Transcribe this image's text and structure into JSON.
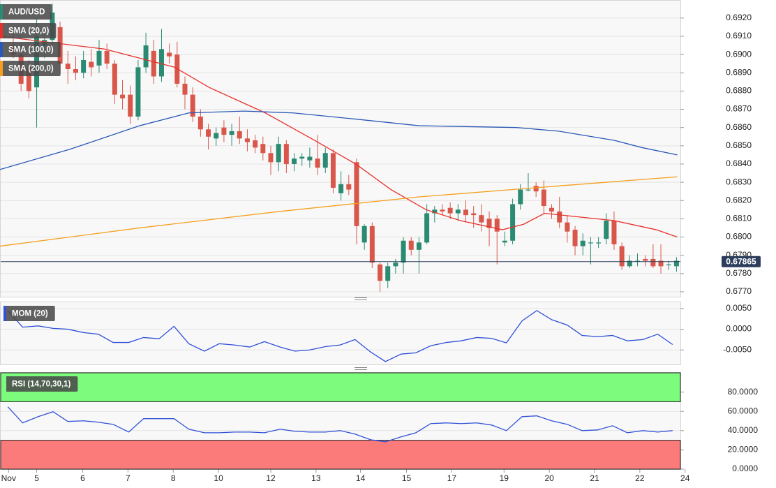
{
  "chart_data": [
    {
      "type": "candlestick",
      "title": "AUD/USD",
      "up_color": "#2b8a72",
      "down_color": "#d9564a",
      "open": [
        0.6905,
        0.69,
        0.6893,
        0.6882,
        0.6905,
        0.6908,
        0.6915,
        0.6895,
        0.6892,
        0.689,
        0.6896,
        0.6894,
        0.6902,
        0.6895,
        0.6878,
        0.6878,
        0.6866,
        0.6893,
        0.6902,
        0.6888,
        0.6901,
        0.69,
        0.6884,
        0.6878,
        0.6866,
        0.6859,
        0.6854,
        0.686,
        0.6856,
        0.6858,
        0.6854,
        0.6853,
        0.6851,
        0.6846,
        0.6841,
        0.6851,
        0.684,
        0.6843,
        0.6842,
        0.6843,
        0.6838,
        0.6846,
        0.6824,
        0.6829,
        0.6841,
        0.6797,
        0.6806,
        0.6785,
        0.6776,
        0.6784,
        0.6786,
        0.6798,
        0.6793,
        0.6797,
        0.6813,
        0.6815,
        0.6816,
        0.6813,
        0.6815,
        0.6813,
        0.6812,
        0.681,
        0.681,
        0.6797,
        0.6798,
        0.6818,
        0.6826,
        0.6828,
        0.6826,
        0.6816,
        0.6814,
        0.6808,
        0.6804,
        0.6795,
        0.6797,
        0.6797,
        0.6799,
        0.6809,
        0.6795,
        0.6784,
        0.6787,
        0.6788,
        0.6788,
        0.6787,
        0.6785,
        0.6784
      ],
      "high": [
        0.6912,
        0.6906,
        0.6897,
        0.692,
        0.6912,
        0.6928,
        0.6918,
        0.6902,
        0.6899,
        0.6902,
        0.6903,
        0.6908,
        0.6906,
        0.6897,
        0.6886,
        0.6883,
        0.6897,
        0.6912,
        0.6908,
        0.6914,
        0.6906,
        0.6907,
        0.6888,
        0.6882,
        0.687,
        0.6862,
        0.686,
        0.6864,
        0.6862,
        0.6866,
        0.6859,
        0.6856,
        0.6855,
        0.685,
        0.6855,
        0.6853,
        0.6846,
        0.6846,
        0.6849,
        0.6856,
        0.6849,
        0.6848,
        0.6836,
        0.6834,
        0.6843,
        0.6807,
        0.6808,
        0.6786,
        0.6786,
        0.6788,
        0.68,
        0.68,
        0.68,
        0.6818,
        0.6817,
        0.6818,
        0.6819,
        0.6818,
        0.682,
        0.6817,
        0.6818,
        0.6814,
        0.6812,
        0.6803,
        0.6821,
        0.6829,
        0.6835,
        0.683,
        0.6831,
        0.6818,
        0.6822,
        0.6812,
        0.6806,
        0.6802,
        0.68,
        0.68,
        0.6813,
        0.6814,
        0.6797,
        0.679,
        0.6791,
        0.679,
        0.6796,
        0.6796,
        0.6787,
        0.6789
      ],
      "low": [
        0.6898,
        0.688,
        0.6876,
        0.686,
        0.6898,
        0.6903,
        0.689,
        0.6884,
        0.6886,
        0.6887,
        0.6888,
        0.689,
        0.6892,
        0.6873,
        0.687,
        0.6862,
        0.6864,
        0.689,
        0.6884,
        0.6885,
        0.6895,
        0.6882,
        0.687,
        0.6863,
        0.6855,
        0.6848,
        0.685,
        0.6852,
        0.685,
        0.6851,
        0.6847,
        0.6846,
        0.6842,
        0.6834,
        0.6836,
        0.6835,
        0.6836,
        0.6839,
        0.6838,
        0.6834,
        0.6835,
        0.6824,
        0.682,
        0.6823,
        0.6796,
        0.6793,
        0.6783,
        0.677,
        0.6772,
        0.678,
        0.678,
        0.679,
        0.678,
        0.6796,
        0.6808,
        0.6812,
        0.681,
        0.6809,
        0.6808,
        0.6805,
        0.6803,
        0.6795,
        0.6785,
        0.6795,
        0.6796,
        0.6815,
        0.6825,
        0.6822,
        0.6813,
        0.681,
        0.6805,
        0.6797,
        0.679,
        0.679,
        0.6785,
        0.6794,
        0.6796,
        0.6793,
        0.6782,
        0.6783,
        0.6784,
        0.6784,
        0.6783,
        0.678,
        0.6782,
        0.6781
      ],
      "close": [
        0.69,
        0.6884,
        0.688,
        0.691,
        0.6908,
        0.6923,
        0.6895,
        0.6892,
        0.689,
        0.6897,
        0.6893,
        0.6902,
        0.6895,
        0.6878,
        0.6876,
        0.6866,
        0.6893,
        0.6905,
        0.6888,
        0.6903,
        0.6899,
        0.6884,
        0.6878,
        0.6866,
        0.6859,
        0.6855,
        0.6857,
        0.6856,
        0.6858,
        0.6854,
        0.6852,
        0.6849,
        0.6846,
        0.6841,
        0.6851,
        0.684,
        0.6843,
        0.6844,
        0.6844,
        0.6838,
        0.6846,
        0.6827,
        0.6829,
        0.6826,
        0.6806,
        0.6806,
        0.6786,
        0.6776,
        0.6784,
        0.6786,
        0.6798,
        0.6793,
        0.6797,
        0.6813,
        0.6815,
        0.6814,
        0.6813,
        0.6815,
        0.6812,
        0.6812,
        0.6808,
        0.6805,
        0.6803,
        0.6798,
        0.6818,
        0.6826,
        0.6826,
        0.6825,
        0.6817,
        0.6814,
        0.6808,
        0.6803,
        0.6795,
        0.6798,
        0.6797,
        0.6797,
        0.6809,
        0.6796,
        0.6784,
        0.6787,
        0.6787,
        0.6787,
        0.6784,
        0.6784,
        0.6785,
        0.6787
      ],
      "series": [
        {
          "name": "SMA (20,0)",
          "color": "#e8302a",
          "x": [
            -1.7,
            11.7,
            20.7,
            25.1,
            32.3,
            38.6,
            43.9,
            48.4,
            52.9,
            57.3,
            62.7,
            65.4,
            68.1,
            72.5,
            77.0,
            82.4,
            85.1
          ],
          "values": [
            0.691,
            0.6903,
            0.6893,
            0.6882,
            0.6868,
            0.6853,
            0.684,
            0.6826,
            0.6815,
            0.6809,
            0.6804,
            0.6807,
            0.6813,
            0.6811,
            0.6809,
            0.6804,
            0.68
          ]
        },
        {
          "name": "SMA (100,0)",
          "color": "#2a58b6",
          "x": [
            -1.7,
            7.2,
            16.2,
            22.5,
            29.6,
            35.9,
            43.0,
            52.0,
            64.5,
            69.9,
            77.0,
            80.6,
            85.1
          ],
          "values": [
            0.6837,
            0.6848,
            0.6861,
            0.6868,
            0.6869,
            0.6868,
            0.6865,
            0.6861,
            0.686,
            0.6858,
            0.6853,
            0.6849,
            0.6845
          ]
        },
        {
          "name": "SMA (200,0)",
          "color": "#f59f1c",
          "x": [
            -1.7,
            16.2,
            34.1,
            52.0,
            69.9,
            85.1
          ],
          "values": [
            0.6795,
            0.6805,
            0.6814,
            0.6822,
            0.6828,
            0.6833
          ]
        }
      ],
      "last_price": 0.67865,
      "last_price_color": "#2c3d5b",
      "xlim": [
        -1.7,
        85.5
      ],
      "ylim": [
        0.67673,
        0.69295
      ],
      "yticks": [
        {
          "value": 0.677,
          "label": "0.6770"
        },
        {
          "value": 0.678,
          "label": "0.6780"
        },
        {
          "value": 0.679,
          "label": "0.6790"
        },
        {
          "value": 0.68,
          "label": "0.6800"
        },
        {
          "value": 0.681,
          "label": "0.6810"
        },
        {
          "value": 0.682,
          "label": "0.6820"
        },
        {
          "value": 0.683,
          "label": "0.6830"
        },
        {
          "value": 0.684,
          "label": "0.6840"
        },
        {
          "value": 0.685,
          "label": "0.6850"
        },
        {
          "value": 0.686,
          "label": "0.6860"
        },
        {
          "value": 0.687,
          "label": "0.6870"
        },
        {
          "value": 0.688,
          "label": "0.6880"
        },
        {
          "value": 0.689,
          "label": "0.6890"
        },
        {
          "value": 0.69,
          "label": "0.6900"
        },
        {
          "value": 0.691,
          "label": "0.6910"
        },
        {
          "value": 0.692,
          "label": "0.6920"
        }
      ],
      "grid": true
    },
    {
      "type": "line",
      "series": [
        {
          "name": "MOM (20)",
          "color": "#3050d8",
          "x": [
            -0.7,
            1.2,
            3.2,
            5.1,
            7.0,
            9.0,
            10.9,
            12.8,
            14.8,
            16.7,
            18.7,
            20.6,
            22.5,
            24.5,
            26.4,
            28.3,
            30.3,
            32.2,
            34.2,
            36.1,
            38.0,
            40.0,
            41.9,
            43.8,
            45.8,
            47.7,
            49.7,
            51.6,
            53.5,
            55.5,
            57.4,
            59.4,
            61.3,
            63.2,
            65.2,
            67.1,
            69.0,
            71.0,
            72.9,
            74.9,
            76.8,
            78.7,
            80.7,
            82.6,
            84.5
          ],
          "values": [
            0.0045,
            0.0005,
            0.0008,
            0.0002,
            0.0,
            -0.0008,
            -0.0012,
            -0.0032,
            -0.0032,
            -0.002,
            -0.0023,
            0.0007,
            -0.0035,
            -0.0053,
            -0.0035,
            -0.0038,
            -0.0043,
            -0.003,
            -0.0043,
            -0.0053,
            -0.005,
            -0.0042,
            -0.0038,
            -0.0025,
            -0.0055,
            -0.0078,
            -0.006,
            -0.0057,
            -0.004,
            -0.0032,
            -0.0028,
            -0.002,
            -0.0022,
            -0.0033,
            0.002,
            0.0045,
            0.0023,
            0.001,
            -0.0015,
            -0.0018,
            -0.0015,
            -0.0028,
            -0.0025,
            -0.0012,
            -0.0037
          ]
        }
      ],
      "xlim": [
        -1.7,
        85.5
      ],
      "ylim": [
        -0.0085,
        0.0065
      ],
      "yticks": [
        {
          "value": -0.005,
          "label": "-0.0050"
        },
        {
          "value": 0,
          "label": "0.0000"
        },
        {
          "value": 0.005,
          "label": "0.0050"
        }
      ],
      "grid": true
    },
    {
      "type": "line",
      "series": [
        {
          "name": "RSI (14,70,30,1)",
          "color": "#3050d8",
          "x": [
            -0.7,
            1.2,
            3.2,
            5.1,
            7.0,
            9.0,
            10.9,
            12.8,
            14.8,
            16.7,
            18.7,
            20.6,
            22.5,
            24.5,
            26.4,
            28.3,
            30.3,
            32.2,
            34.2,
            36.1,
            38.0,
            40.0,
            41.9,
            43.8,
            45.8,
            47.7,
            49.7,
            51.6,
            53.5,
            55.5,
            57.4,
            59.4,
            61.3,
            63.2,
            65.2,
            67.1,
            69.0,
            71.0,
            72.9,
            74.9,
            76.8,
            78.7,
            80.7,
            82.6,
            84.5
          ],
          "values": [
            64.7,
            48,
            54.5,
            59.6,
            49.5,
            50.2,
            48.7,
            46.5,
            38.5,
            52.4,
            52.4,
            52.4,
            41.5,
            37.8,
            37.8,
            38.5,
            38.5,
            37.8,
            41.5,
            39.3,
            38.5,
            38.5,
            40,
            36.4,
            30.5,
            28.4,
            33.5,
            37.8,
            47.3,
            48,
            47.3,
            48,
            45.8,
            40,
            54.5,
            55.3,
            50.2,
            46.5,
            40,
            40.7,
            45.1,
            37.8,
            40,
            38.5,
            40
          ]
        }
      ],
      "overbought": 70,
      "oversold": 30,
      "overbought_color": "#7dfb7d",
      "oversold_color": "#fb7b7b",
      "xlim": [
        -1.7,
        85.5
      ],
      "ylim": [
        0,
        100
      ],
      "yticks": [
        {
          "value": 0,
          "label": "0.0000"
        },
        {
          "value": 20,
          "label": "20.0000"
        },
        {
          "value": 40,
          "label": "40.0000"
        },
        {
          "value": 60,
          "label": "60.0000"
        },
        {
          "value": 80,
          "label": "80.0000"
        }
      ],
      "xticks": [
        {
          "value": -0.6,
          "label": "Nov"
        },
        {
          "value": 3.0,
          "label": "5"
        },
        {
          "value": 8.9,
          "label": "6"
        },
        {
          "value": 14.7,
          "label": "7"
        },
        {
          "value": 20.5,
          "label": "8"
        },
        {
          "value": 26.3,
          "label": "10"
        },
        {
          "value": 33.0,
          "label": "12"
        },
        {
          "value": 38.8,
          "label": "13"
        },
        {
          "value": 44.5,
          "label": "14"
        },
        {
          "value": 50.4,
          "label": "15"
        },
        {
          "value": 56.2,
          "label": "17"
        },
        {
          "value": 62.9,
          "label": "19"
        },
        {
          "value": 68.7,
          "label": "20"
        },
        {
          "value": 74.5,
          "label": "21"
        },
        {
          "value": 80.3,
          "label": "22"
        },
        {
          "value": 86.1,
          "label": "24"
        }
      ],
      "grid": true
    }
  ]
}
